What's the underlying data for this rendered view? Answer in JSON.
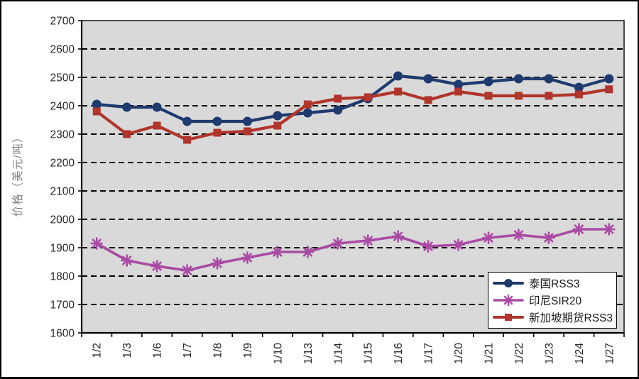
{
  "chart_data": {
    "type": "line",
    "title": "",
    "xlabel": "",
    "ylabel": "价格（美元/吨）",
    "ylim": [
      1600,
      2700
    ],
    "ytick_step": 100,
    "grid": "dashed-horizontal",
    "plot_bg": "#d9d9d9",
    "axis_color": "#000000",
    "legend_position": "bottom-right-inside",
    "categories": [
      "1/2",
      "1/3",
      "1/6",
      "1/7",
      "1/8",
      "1/9",
      "1/10",
      "1/13",
      "1/14",
      "1/15",
      "1/16",
      "1/17",
      "1/20",
      "1/21",
      "1/22",
      "1/23",
      "1/24",
      "1/27"
    ],
    "series": [
      {
        "name": "泰国RSS3",
        "color": "#1e3a6e",
        "marker": "circle",
        "values": [
          2405,
          2395,
          2395,
          2345,
          2345,
          2345,
          2365,
          2375,
          2385,
          2425,
          2505,
          2495,
          2475,
          2485,
          2495,
          2495,
          2465,
          2495
        ]
      },
      {
        "name": "印尼SIR20",
        "color": "#a94ba4",
        "marker": "star",
        "values": [
          1915,
          1855,
          1835,
          1820,
          1845,
          1865,
          1885,
          1885,
          1915,
          1925,
          1940,
          1905,
          1910,
          1935,
          1945,
          1935,
          1965,
          1965
        ]
      },
      {
        "name": "新加坡期货RSS3",
        "color": "#b0352b",
        "marker": "square",
        "values": [
          2380,
          2300,
          2330,
          2280,
          2305,
          2310,
          2330,
          2405,
          2425,
          2430,
          2450,
          2420,
          2450,
          2435,
          2435,
          2435,
          2440,
          2458
        ]
      }
    ]
  }
}
